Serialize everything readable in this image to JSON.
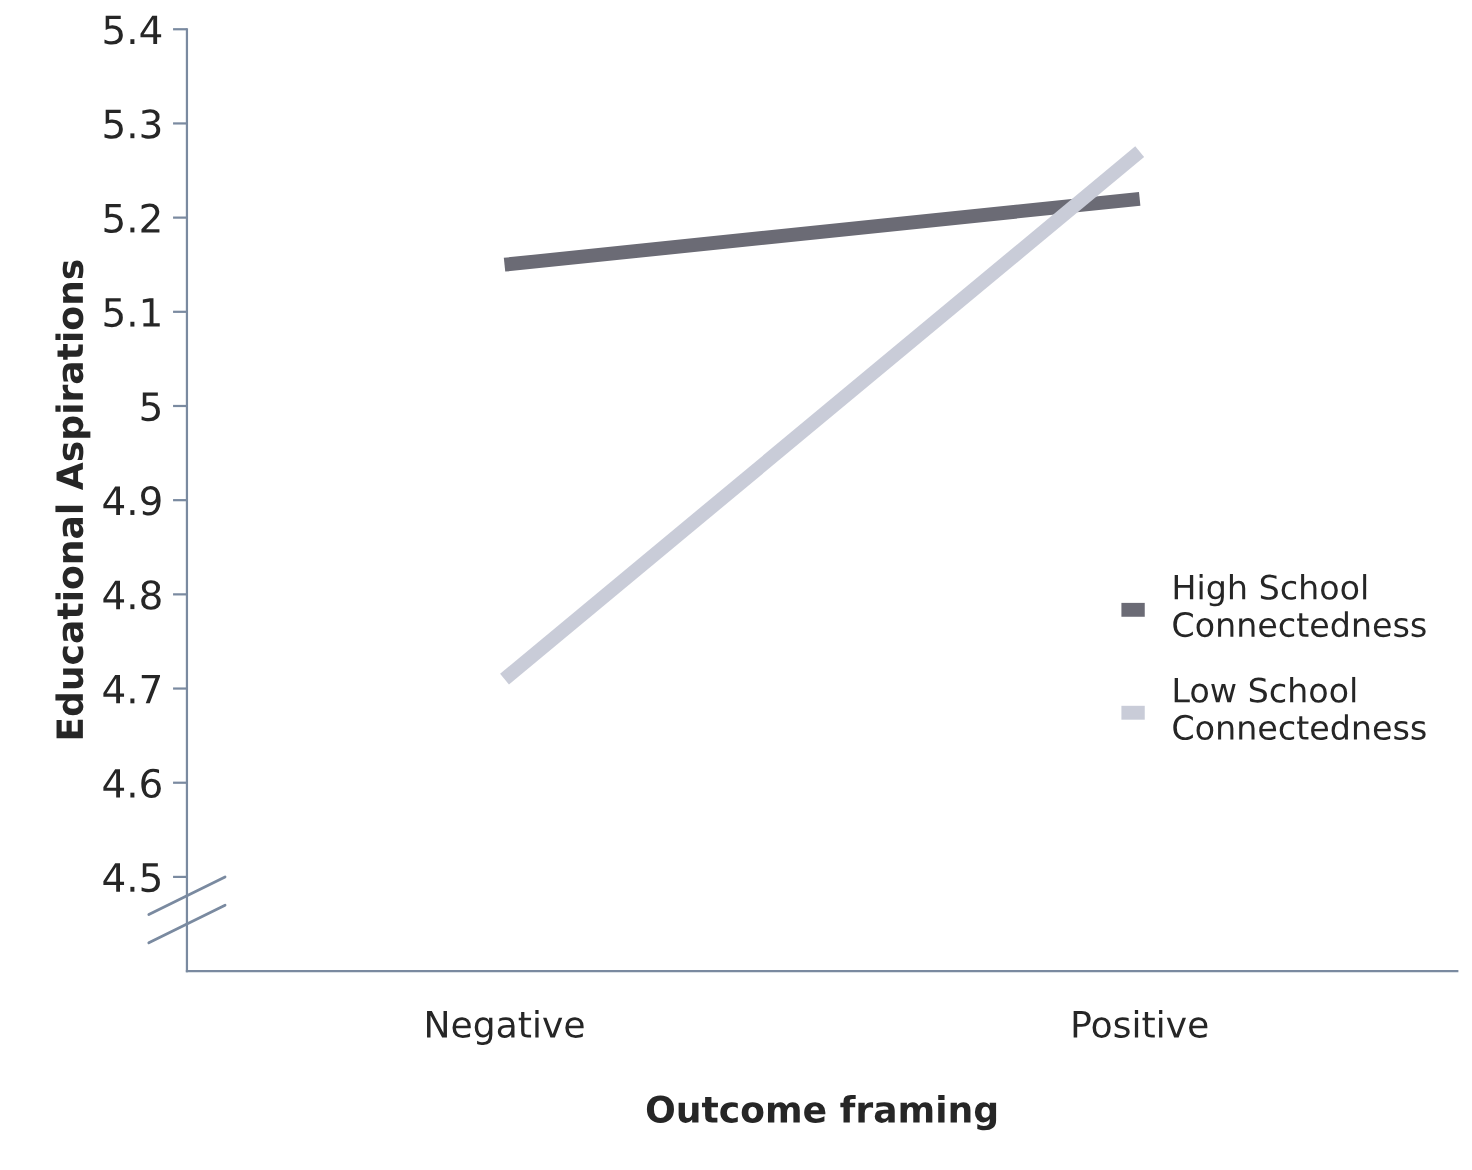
{
  "chart_data": {
    "type": "line",
    "xlabel": "Outcome framing",
    "ylabel": "Educational Aspirations",
    "categories": [
      "Negative",
      "Positive"
    ],
    "series": [
      {
        "name": "High School Connectedness",
        "color": "#6b6b75",
        "values": [
          5.15,
          5.22
        ]
      },
      {
        "name": "Low School Connectedness",
        "color": "#c9ccd8",
        "values": [
          4.71,
          5.27
        ]
      }
    ],
    "ylim": [
      4.4,
      5.4
    ],
    "yticks": [
      4.5,
      4.6,
      4.7,
      4.8,
      4.9,
      5,
      5.1,
      5.2,
      5.3,
      5.4
    ],
    "grid": false,
    "legend": "right",
    "marker": "none",
    "line_style": "solid"
  }
}
